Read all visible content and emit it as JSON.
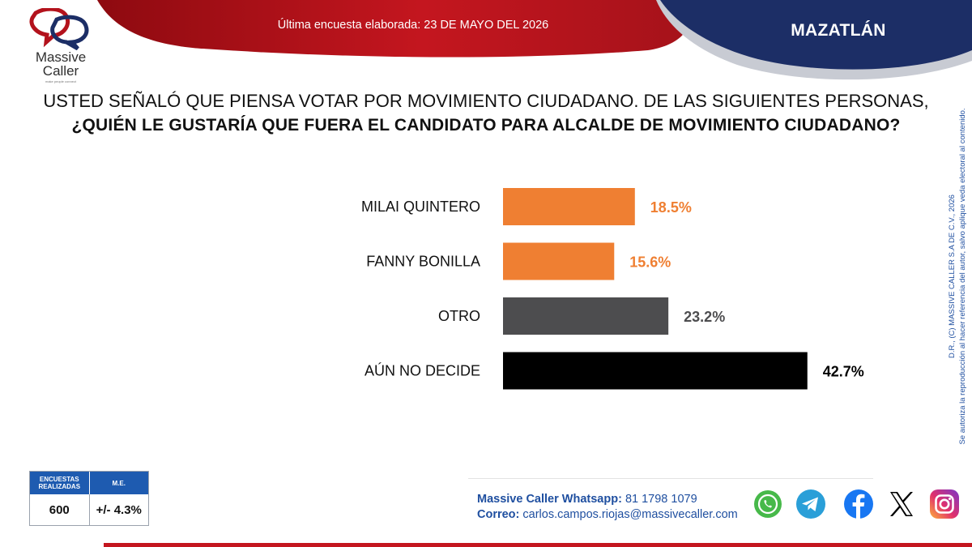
{
  "brand": {
    "name_line1": "Massive",
    "name_line2": "Caller",
    "tagline": "make people connect"
  },
  "header": {
    "survey_date": "Última encuesta elaborada: 23 DE MAYO DEL 2026",
    "city": "MAZATLÁN"
  },
  "question": {
    "line1": "USTED SEÑALÓ QUE PIENSA VOTAR POR MOVIMIENTO CIUDADANO. DE LAS SIGUIENTES PERSONAS,",
    "line2": "¿QUIÉN LE GUSTARÍA QUE FUERA EL CANDIDATO PARA ALCALDE DE MOVIMIENTO CIUDADANO?"
  },
  "chart_data": {
    "type": "bar",
    "orientation": "horizontal",
    "categories": [
      "MILAI QUINTERO",
      "FANNY BONILLA",
      "OTRO",
      "AÚN NO DECIDE"
    ],
    "values": [
      18.5,
      15.6,
      23.2,
      42.7
    ],
    "value_labels": [
      "18.5%",
      "15.6%",
      "23.2%",
      "42.7%"
    ],
    "colors": [
      "#ef7f32",
      "#ef7f32",
      "#4d4d4f",
      "#000000"
    ],
    "label_colors": [
      "#ef7f32",
      "#ef7f32",
      "#4d4d4f",
      "#000000"
    ],
    "unit": "%",
    "grid": false,
    "legend": "none"
  },
  "copyright": {
    "line1": "D.R., (C) MASSIVE CALLER S.A DE C.V., 2026",
    "line2": "Se autoriza la reproducción al hacer referencia del autor, salvo aplique veda electoral al contenido."
  },
  "stats": {
    "col1_label": "ENCUESTAS REALIZADAS",
    "col2_label": "M.E.",
    "surveys": "600",
    "margin_error": "+/- 4.3%"
  },
  "contact": {
    "whatsapp_label": "Massive Caller Whatsapp:",
    "whatsapp_number": "81 1798 1079",
    "email_label": "Correo:",
    "email": "carlos.campos.riojas@massivecaller.com"
  },
  "social": [
    {
      "icon": "whatsapp-icon",
      "color": "#47b94a"
    },
    {
      "icon": "telegram-icon",
      "color": "#2a9fd8"
    },
    {
      "icon": "facebook-icon",
      "color": "#1877f2"
    },
    {
      "icon": "x-icon",
      "color": "#000000"
    },
    {
      "icon": "instagram-icon",
      "color": "#e1306c"
    }
  ],
  "colors": {
    "header_red": "#b3121c",
    "header_navy": "#1c2e66",
    "table_blue": "#1e5bb0",
    "contact_blue": "#1f4fa0"
  }
}
